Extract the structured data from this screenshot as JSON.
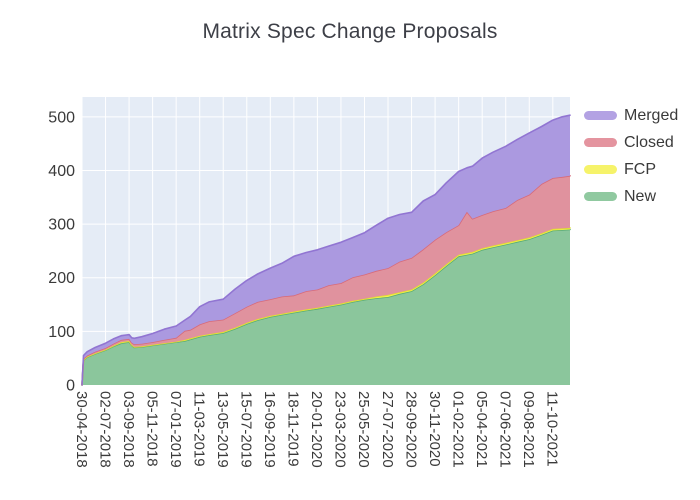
{
  "colors": {
    "background": "#ffffff",
    "plot_bg": "#e5ecf6",
    "grid": "#ffffff",
    "title_text": "#3d3f47",
    "tick_text": "#3a3a3a"
  },
  "legend": {
    "items": [
      {
        "label": "Merged",
        "color": "#b3a2e3"
      },
      {
        "label": "Closed",
        "color": "#e4949f"
      },
      {
        "label": "FCP",
        "color": "#f6f36a"
      },
      {
        "label": "New",
        "color": "#90c9a0"
      }
    ]
  },
  "chart_data": {
    "type": "area",
    "stacked": true,
    "title": "Matrix Spec Change Proposals",
    "xlabel": "",
    "ylabel": "",
    "grid": true,
    "legend_position": "right",
    "ylim": [
      0,
      537
    ],
    "y_ticks": [
      0,
      100,
      200,
      300,
      400,
      500
    ],
    "x_unit": "days since first date",
    "x_max": 1306,
    "x_tick_days": [
      0,
      63,
      126,
      189,
      252,
      315,
      378,
      441,
      504,
      567,
      630,
      693,
      756,
      819,
      882,
      945,
      1008,
      1071,
      1134,
      1197,
      1260
    ],
    "x_tick_labels": [
      "30-04-2018",
      "02-07-2018",
      "03-09-2018",
      "05-11-2018",
      "07-01-2019",
      "11-03-2019",
      "13-05-2019",
      "15-07-2019",
      "16-09-2019",
      "18-11-2019",
      "20-01-2020",
      "23-03-2020",
      "25-05-2020",
      "27-07-2020",
      "28-09-2020",
      "30-11-2020",
      "01-02-2021",
      "05-04-2021",
      "07-06-2021",
      "09-08-2021",
      "11-10-2021"
    ],
    "x_days": [
      0,
      4,
      14,
      35,
      63,
      84,
      105,
      126,
      133,
      140,
      160,
      189,
      220,
      252,
      275,
      290,
      315,
      340,
      378,
      410,
      441,
      470,
      504,
      535,
      567,
      600,
      630,
      660,
      693,
      725,
      756,
      788,
      819,
      850,
      882,
      913,
      945,
      975,
      1008,
      1030,
      1045,
      1071,
      1100,
      1134,
      1165,
      1197,
      1230,
      1260,
      1285,
      1306
    ],
    "series": [
      {
        "name": "New",
        "fill": "#8bc69c",
        "line": "#57ab76",
        "values": [
          0,
          46,
          52,
          58,
          65,
          72,
          78,
          80,
          74,
          70,
          71,
          74,
          77,
          80,
          82,
          85,
          90,
          93,
          97,
          105,
          114,
          121,
          127,
          131,
          135,
          139,
          142,
          146,
          150,
          155,
          159,
          162,
          164,
          170,
          175,
          188,
          205,
          222,
          240,
          243,
          245,
          252,
          257,
          262,
          267,
          272,
          280,
          288,
          289,
          290
        ]
      },
      {
        "name": "FCP",
        "fill": "#f4f14e",
        "line": "#e0dd30",
        "values": [
          0,
          1,
          1,
          1,
          1,
          1,
          2,
          2,
          1,
          1,
          1,
          1,
          1,
          1,
          2,
          2,
          2,
          2,
          2,
          2,
          2,
          2,
          2,
          2,
          2,
          2,
          2,
          2,
          2,
          2,
          2,
          3,
          4,
          3,
          3,
          3,
          3,
          3,
          3,
          3,
          3,
          3,
          3,
          3,
          3,
          3,
          3,
          3,
          3,
          3
        ]
      },
      {
        "name": "Closed",
        "fill": "#e0929e",
        "line": "#d86a79",
        "values": [
          0,
          2,
          2,
          3,
          3,
          4,
          4,
          4,
          4,
          5,
          5,
          5,
          6,
          7,
          17,
          16,
          21,
          24,
          23,
          27,
          30,
          32,
          31,
          32,
          30,
          34,
          34,
          38,
          38,
          44,
          45,
          48,
          50,
          57,
          59,
          62,
          63,
          60,
          55,
          77,
          62,
          62,
          64,
          65,
          75,
          80,
          92,
          95,
          96,
          97
        ]
      },
      {
        "name": "Merged",
        "fill": "#ab99e0",
        "line": "#9175d2",
        "values": [
          0,
          6,
          7,
          8,
          9,
          9,
          8,
          8,
          9,
          11,
          13,
          16,
          20,
          22,
          20,
          25,
          33,
          36,
          38,
          45,
          49,
          52,
          58,
          62,
          73,
          72,
          74,
          73,
          76,
          74,
          78,
          85,
          93,
          88,
          85,
          90,
          84,
          92,
          100,
          82,
          98,
          106,
          110,
          115,
          113,
          115,
          107,
          108,
          112,
          113
        ]
      }
    ]
  }
}
